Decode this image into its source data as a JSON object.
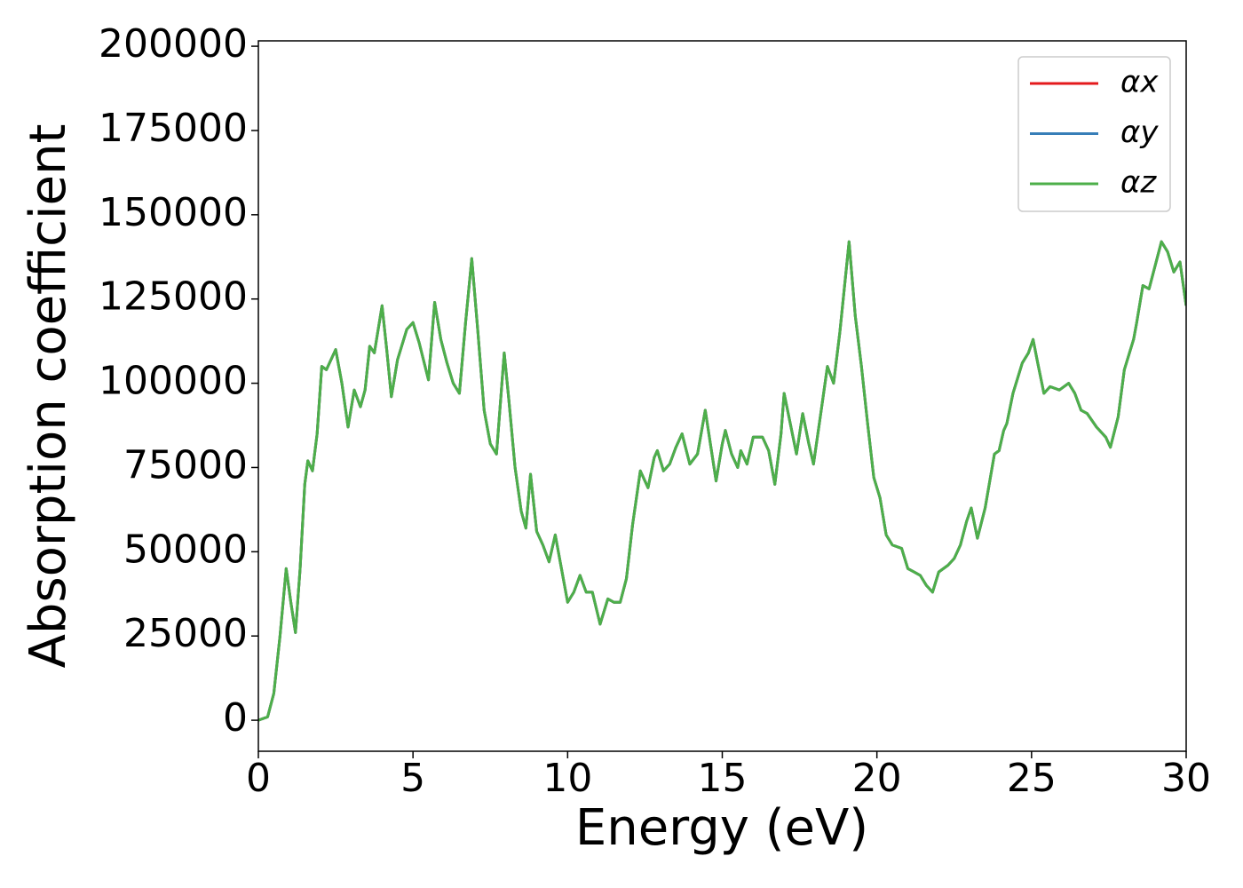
{
  "chart_data": {
    "type": "line",
    "xlabel": "Energy (eV)",
    "ylabel": "Absorption coefficient",
    "x": [
      0,
      0.3,
      0.5,
      0.7,
      0.9,
      1.05,
      1.2,
      1.35,
      1.5,
      1.6,
      1.75,
      1.9,
      2.05,
      2.2,
      2.5,
      2.7,
      2.9,
      3.1,
      3.3,
      3.45,
      3.6,
      3.75,
      4.0,
      4.15,
      4.3,
      4.5,
      4.8,
      5.0,
      5.2,
      5.5,
      5.7,
      5.9,
      6.1,
      6.3,
      6.5,
      6.7,
      6.9,
      7.1,
      7.3,
      7.5,
      7.7,
      7.95,
      8.1,
      8.3,
      8.5,
      8.65,
      8.8,
      9.0,
      9.2,
      9.4,
      9.6,
      9.8,
      10.0,
      10.2,
      10.4,
      10.6,
      10.8,
      11.05,
      11.3,
      11.5,
      11.7,
      11.9,
      12.1,
      12.35,
      12.6,
      12.8,
      12.9,
      13.1,
      13.3,
      13.5,
      13.7,
      13.95,
      14.2,
      14.45,
      14.65,
      14.8,
      15.0,
      15.1,
      15.3,
      15.5,
      15.6,
      15.8,
      16.0,
      16.3,
      16.5,
      16.7,
      16.9,
      17.0,
      17.2,
      17.4,
      17.6,
      17.8,
      17.95,
      18.2,
      18.4,
      18.6,
      18.8,
      19.1,
      19.3,
      19.5,
      19.7,
      19.9,
      20.1,
      20.3,
      20.5,
      20.8,
      21.0,
      21.2,
      21.4,
      21.6,
      21.8,
      22.0,
      22.3,
      22.5,
      22.7,
      22.9,
      23.05,
      23.25,
      23.5,
      23.8,
      23.95,
      24.1,
      24.2,
      24.4,
      24.7,
      24.9,
      25.05,
      25.2,
      25.4,
      25.6,
      25.9,
      26.2,
      26.4,
      26.6,
      26.8,
      27.1,
      27.4,
      27.55,
      27.8,
      28.0,
      28.3,
      28.4,
      28.6,
      28.8,
      29.0,
      29.2,
      29.4,
      29.6,
      29.8,
      30.0
    ],
    "series": [
      {
        "name": "αx",
        "color": "#e41a1c",
        "values": [
          0,
          1000,
          8000,
          25000,
          45000,
          35000,
          26000,
          45000,
          70000,
          77000,
          74000,
          85000,
          105000,
          104000,
          110000,
          100000,
          87000,
          98000,
          93000,
          98000,
          111000,
          109000,
          123000,
          110000,
          96000,
          107000,
          116000,
          118000,
          112000,
          101000,
          124000,
          113000,
          106000,
          100000,
          97000,
          118000,
          137000,
          115000,
          92000,
          82000,
          79000,
          109000,
          95000,
          75000,
          62000,
          57000,
          73000,
          56000,
          52000,
          47000,
          55000,
          45000,
          35000,
          38000,
          43000,
          38000,
          38000,
          28500,
          36000,
          35000,
          35000,
          42000,
          58000,
          74000,
          69000,
          78000,
          80000,
          74000,
          76000,
          81000,
          85000,
          76000,
          79000,
          92000,
          80000,
          71000,
          82000,
          86000,
          79000,
          75000,
          80000,
          76000,
          84000,
          84000,
          80000,
          70000,
          85000,
          97000,
          88000,
          79000,
          91000,
          82000,
          76000,
          92000,
          105000,
          100000,
          115000,
          142000,
          120000,
          105000,
          88000,
          72000,
          66000,
          55000,
          52000,
          51000,
          45000,
          44000,
          43000,
          40000,
          38000,
          44000,
          46000,
          48000,
          52000,
          59000,
          63000,
          54000,
          63000,
          79000,
          80000,
          86000,
          88000,
          97000,
          106000,
          109000,
          113000,
          106000,
          97000,
          99000,
          98000,
          100000,
          97000,
          92000,
          91000,
          87000,
          84000,
          81000,
          90000,
          104000,
          113000,
          118000,
          129000,
          128000,
          135000,
          142000,
          139000,
          133000,
          136000,
          123000
        ]
      },
      {
        "name": "αy",
        "color": "#377eb8",
        "values": [
          0,
          1000,
          8000,
          25000,
          45000,
          35000,
          26000,
          45000,
          70000,
          77000,
          74000,
          85000,
          105000,
          104000,
          110000,
          100000,
          87000,
          98000,
          93000,
          98000,
          111000,
          109000,
          123000,
          110000,
          96000,
          107000,
          116000,
          118000,
          112000,
          101000,
          124000,
          113000,
          106000,
          100000,
          97000,
          118000,
          137000,
          115000,
          92000,
          82000,
          79000,
          109000,
          95000,
          75000,
          62000,
          57000,
          73000,
          56000,
          52000,
          47000,
          55000,
          45000,
          35000,
          38000,
          43000,
          38000,
          38000,
          28500,
          36000,
          35000,
          35000,
          42000,
          58000,
          74000,
          69000,
          78000,
          80000,
          74000,
          76000,
          81000,
          85000,
          76000,
          79000,
          92000,
          80000,
          71000,
          82000,
          86000,
          79000,
          75000,
          80000,
          76000,
          84000,
          84000,
          80000,
          70000,
          85000,
          97000,
          88000,
          79000,
          91000,
          82000,
          76000,
          92000,
          105000,
          100000,
          115000,
          142000,
          120000,
          105000,
          88000,
          72000,
          66000,
          55000,
          52000,
          51000,
          45000,
          44000,
          43000,
          40000,
          38000,
          44000,
          46000,
          48000,
          52000,
          59000,
          63000,
          54000,
          63000,
          79000,
          80000,
          86000,
          88000,
          97000,
          106000,
          109000,
          113000,
          106000,
          97000,
          99000,
          98000,
          100000,
          97000,
          92000,
          91000,
          87000,
          84000,
          81000,
          90000,
          104000,
          113000,
          118000,
          129000,
          128000,
          135000,
          142000,
          139000,
          133000,
          136000,
          123000
        ]
      },
      {
        "name": "αz",
        "color": "#4daf4a",
        "values": [
          0,
          1000,
          8000,
          25000,
          45000,
          35000,
          26000,
          45000,
          70000,
          77000,
          74000,
          85000,
          105000,
          104000,
          110000,
          100000,
          87000,
          98000,
          93000,
          98000,
          111000,
          109000,
          123000,
          110000,
          96000,
          107000,
          116000,
          118000,
          112000,
          101000,
          124000,
          113000,
          106000,
          100000,
          97000,
          118000,
          137000,
          115000,
          92000,
          82000,
          79000,
          109000,
          95000,
          75000,
          62000,
          57000,
          73000,
          56000,
          52000,
          47000,
          55000,
          45000,
          35000,
          38000,
          43000,
          38000,
          38000,
          28500,
          36000,
          35000,
          35000,
          42000,
          58000,
          74000,
          69000,
          78000,
          80000,
          74000,
          76000,
          81000,
          85000,
          76000,
          79000,
          92000,
          80000,
          71000,
          82000,
          86000,
          79000,
          75000,
          80000,
          76000,
          84000,
          84000,
          80000,
          70000,
          85000,
          97000,
          88000,
          79000,
          91000,
          82000,
          76000,
          92000,
          105000,
          100000,
          115000,
          142000,
          120000,
          105000,
          88000,
          72000,
          66000,
          55000,
          52000,
          51000,
          45000,
          44000,
          43000,
          40000,
          38000,
          44000,
          46000,
          48000,
          52000,
          59000,
          63000,
          54000,
          63000,
          79000,
          80000,
          86000,
          88000,
          97000,
          106000,
          109000,
          113000,
          106000,
          97000,
          99000,
          98000,
          100000,
          97000,
          92000,
          91000,
          87000,
          84000,
          81000,
          90000,
          104000,
          113000,
          118000,
          129000,
          128000,
          135000,
          142000,
          139000,
          133000,
          136000,
          123000
        ]
      }
    ],
    "xlim": [
      0,
      30
    ],
    "xticks": [
      0,
      5,
      10,
      15,
      20,
      25,
      30
    ],
    "ylim": [
      -9200,
      201600
    ],
    "yticks": [
      0,
      25000,
      50000,
      75000,
      100000,
      125000,
      150000,
      175000,
      200000
    ],
    "legend": "upper right",
    "grid": false
  }
}
